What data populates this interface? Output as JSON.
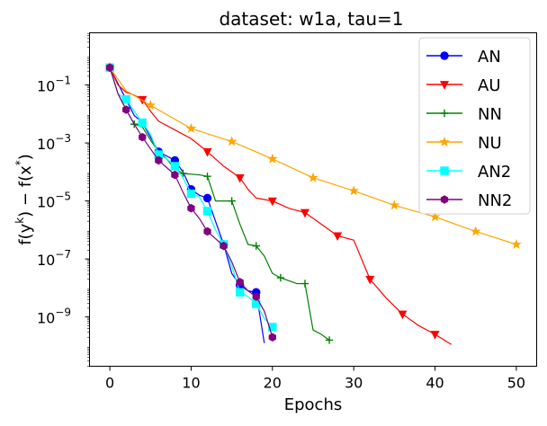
{
  "chart_data": {
    "type": "line",
    "title": "dataset: w1a, tau=1",
    "xlabel": "Epochs",
    "ylabel": "f(y^(k)) − f(x*)",
    "ylabel_parts": {
      "f1": "f(y",
      "k": "k",
      "mid": ") − f(x",
      "star": "*",
      "end": ")"
    },
    "xlim": [
      -2.5,
      52.5
    ],
    "ylim_log10": [
      -10.7,
      0.8
    ],
    "xticks": [
      0,
      10,
      20,
      30,
      40,
      50
    ],
    "xtick_labels": [
      "0",
      "10",
      "20",
      "30",
      "40",
      "50"
    ],
    "yticks_log10": [
      -9,
      -7,
      -5,
      -3,
      -1
    ],
    "ytick_base": "10",
    "ytick_exponents": [
      "−9",
      "−7",
      "−5",
      "−3",
      "−1"
    ],
    "legend_position": "top-right",
    "series": [
      {
        "name": "AN",
        "color": "#0000ff",
        "marker": "circle",
        "points": [
          [
            0,
            -0.4
          ],
          [
            2,
            -1.5
          ],
          [
            3,
            -2.05
          ],
          [
            4,
            -2.3
          ],
          [
            5,
            -2.8
          ],
          [
            6,
            -3.3
          ],
          [
            7,
            -3.45
          ],
          [
            8,
            -3.6
          ],
          [
            9,
            -4.0
          ],
          [
            10,
            -4.6
          ],
          [
            11,
            -4.8
          ],
          [
            12,
            -4.9
          ],
          [
            13,
            -5.7
          ],
          [
            14,
            -6.5
          ],
          [
            15,
            -7.5
          ],
          [
            16,
            -7.9
          ],
          [
            17,
            -8.1
          ],
          [
            18,
            -8.15
          ],
          [
            19,
            -9.9
          ]
        ],
        "markers": [
          0,
          6,
          8,
          10,
          12,
          14,
          16,
          18
        ]
      },
      {
        "name": "AU",
        "color": "#ff0000",
        "marker": "triangle-down",
        "points": [
          [
            0,
            -0.4
          ],
          [
            1,
            -1.0
          ],
          [
            2,
            -1.25
          ],
          [
            3,
            -1.35
          ],
          [
            4,
            -1.5
          ],
          [
            5,
            -1.9
          ],
          [
            6,
            -2.25
          ],
          [
            8,
            -2.55
          ],
          [
            10,
            -2.85
          ],
          [
            12,
            -3.3
          ],
          [
            14,
            -3.8
          ],
          [
            16,
            -4.2
          ],
          [
            17,
            -4.6
          ],
          [
            18,
            -4.9
          ],
          [
            20,
            -5.0
          ],
          [
            22,
            -5.25
          ],
          [
            24,
            -5.4
          ],
          [
            26,
            -5.8
          ],
          [
            28,
            -6.2
          ],
          [
            30,
            -6.35
          ],
          [
            32,
            -7.7
          ],
          [
            34,
            -8.35
          ],
          [
            36,
            -8.9
          ],
          [
            38,
            -9.3
          ],
          [
            40,
            -9.6
          ],
          [
            42,
            -9.95
          ]
        ],
        "markers": [
          4,
          12,
          16,
          20,
          24,
          28,
          32,
          36,
          40
        ]
      },
      {
        "name": "NN",
        "color": "#008000",
        "marker": "plus",
        "points": [
          [
            0,
            -0.4
          ],
          [
            1,
            -1.3
          ],
          [
            2,
            -1.85
          ],
          [
            3,
            -2.35
          ],
          [
            4,
            -2.45
          ],
          [
            5,
            -2.9
          ],
          [
            6,
            -3.3
          ],
          [
            7,
            -3.55
          ],
          [
            8,
            -3.9
          ],
          [
            9,
            -4.05
          ],
          [
            11,
            -4.1
          ],
          [
            12,
            -4.15
          ],
          [
            13,
            -5.0
          ],
          [
            15,
            -5.0
          ],
          [
            16,
            -5.8
          ],
          [
            17,
            -6.5
          ],
          [
            18,
            -6.55
          ],
          [
            19,
            -6.9
          ],
          [
            20,
            -7.5
          ],
          [
            21,
            -7.65
          ],
          [
            22,
            -7.75
          ],
          [
            23,
            -7.85
          ],
          [
            24,
            -7.85
          ],
          [
            25,
            -9.45
          ],
          [
            26,
            -9.6
          ],
          [
            27,
            -9.8
          ]
        ],
        "markers": [
          3,
          9,
          12,
          15,
          18,
          21,
          24,
          27
        ]
      },
      {
        "name": "NU",
        "color": "#ffa500",
        "marker": "star",
        "points": [
          [
            0,
            -0.4
          ],
          [
            2,
            -1.2
          ],
          [
            5,
            -1.7
          ],
          [
            10,
            -2.5
          ],
          [
            15,
            -2.95
          ],
          [
            20,
            -3.55
          ],
          [
            25,
            -4.2
          ],
          [
            30,
            -4.65
          ],
          [
            35,
            -5.15
          ],
          [
            40,
            -5.55
          ],
          [
            45,
            -6.05
          ],
          [
            50,
            -6.5
          ]
        ],
        "markers": [
          0,
          5,
          10,
          15,
          20,
          25,
          30,
          35,
          40,
          45,
          50
        ]
      },
      {
        "name": "AN2",
        "color": "#00ffff",
        "marker": "square",
        "points": [
          [
            0,
            -0.4
          ],
          [
            1,
            -1.3
          ],
          [
            2,
            -1.5
          ],
          [
            3,
            -1.9
          ],
          [
            4,
            -2.3
          ],
          [
            5,
            -2.7
          ],
          [
            6,
            -3.4
          ],
          [
            7,
            -3.55
          ],
          [
            8,
            -3.8
          ],
          [
            9,
            -4.2
          ],
          [
            10,
            -4.75
          ],
          [
            11,
            -4.85
          ],
          [
            12,
            -5.35
          ],
          [
            13,
            -6.0
          ],
          [
            14,
            -6.5
          ],
          [
            15,
            -7.25
          ],
          [
            16,
            -8.15
          ],
          [
            17,
            -8.3
          ],
          [
            18,
            -8.55
          ],
          [
            19,
            -9.05
          ],
          [
            20,
            -9.35
          ]
        ],
        "markers": [
          0,
          2,
          4,
          6,
          8,
          10,
          12,
          14,
          16,
          18,
          20
        ]
      },
      {
        "name": "NN2",
        "color": "#800080",
        "marker": "hexagon",
        "points": [
          [
            0,
            -0.4
          ],
          [
            1,
            -1.3
          ],
          [
            2,
            -1.85
          ],
          [
            3,
            -2.35
          ],
          [
            4,
            -2.8
          ],
          [
            5,
            -3.2
          ],
          [
            6,
            -3.6
          ],
          [
            7,
            -3.85
          ],
          [
            8,
            -4.1
          ],
          [
            9,
            -4.7
          ],
          [
            10,
            -5.25
          ],
          [
            11,
            -5.6
          ],
          [
            12,
            -6.05
          ],
          [
            13,
            -6.3
          ],
          [
            14,
            -6.55
          ],
          [
            15,
            -7.1
          ],
          [
            16,
            -7.8
          ],
          [
            17,
            -8.1
          ],
          [
            18,
            -8.3
          ],
          [
            19,
            -8.8
          ],
          [
            20,
            -9.7
          ]
        ],
        "markers": [
          0,
          2,
          4,
          6,
          8,
          10,
          12,
          14,
          16,
          18,
          20
        ]
      }
    ]
  }
}
